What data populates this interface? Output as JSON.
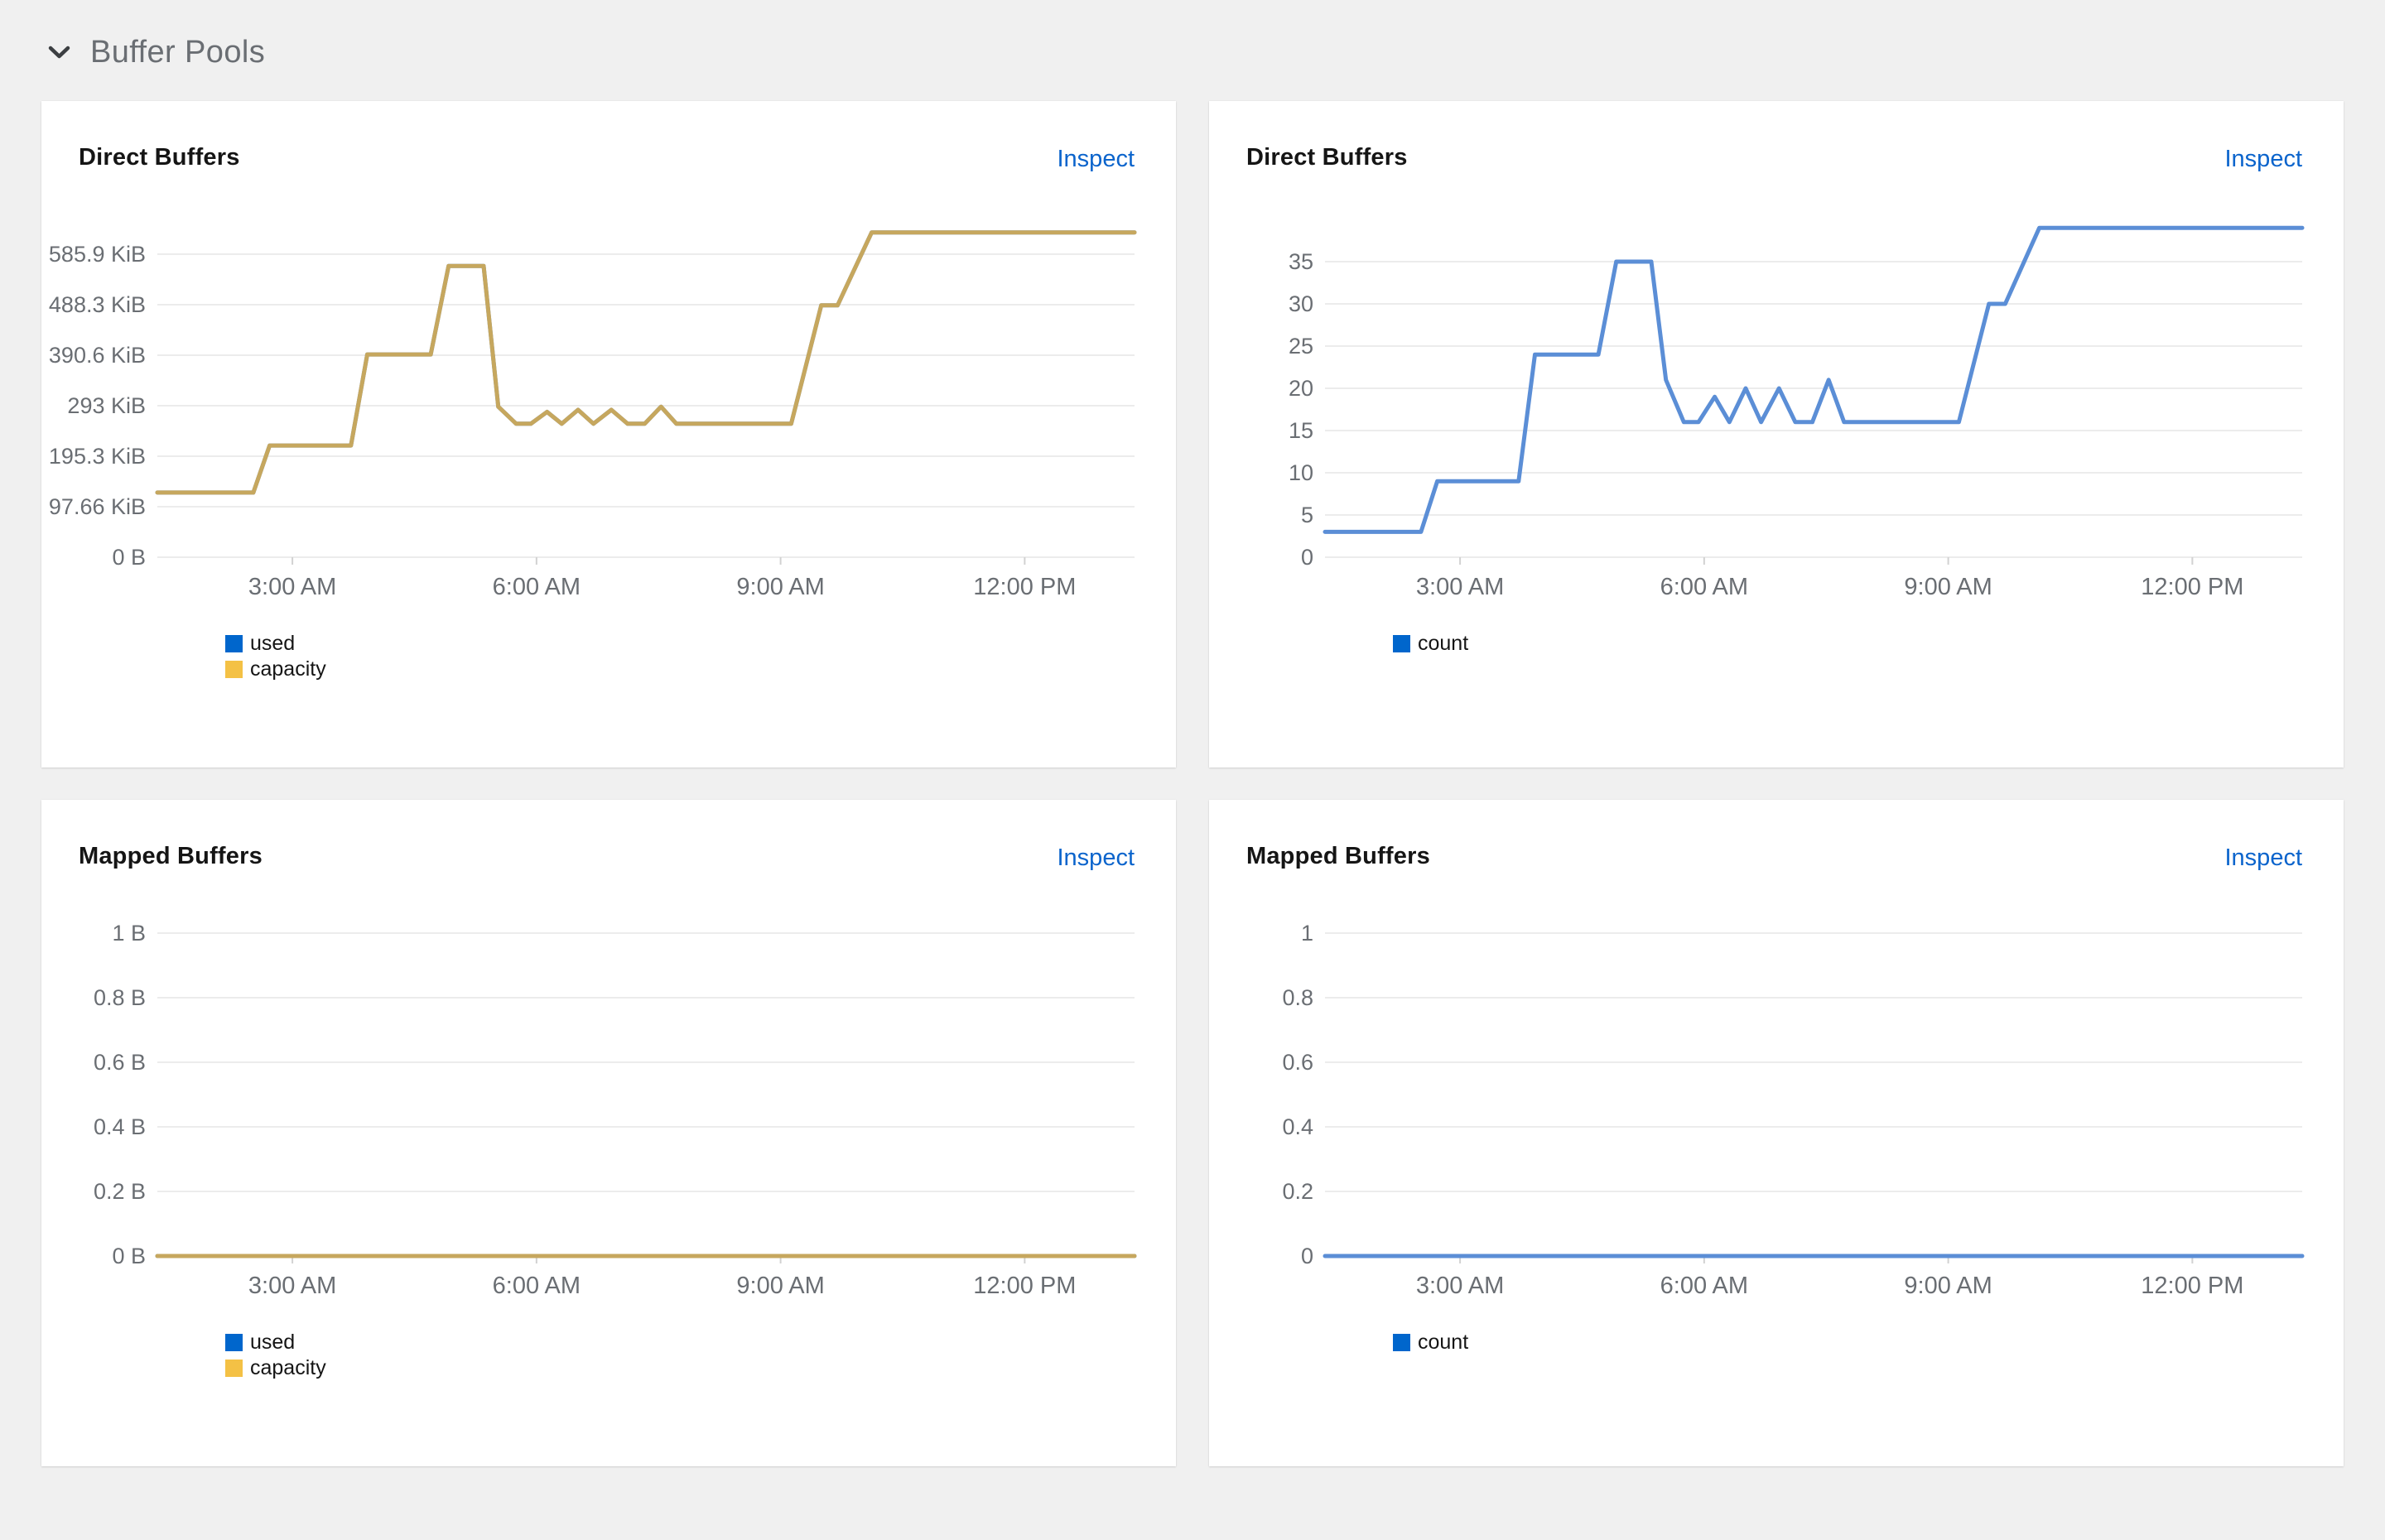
{
  "section": {
    "title": "Buffer Pools"
  },
  "colors": {
    "page_bg": "#f0f0f0",
    "card_bg": "#ffffff",
    "section_title": "#6a6e73",
    "chevron": "#3c3f42",
    "card_title": "#151515",
    "link": "#0b64cc",
    "axis_label": "#6a6e73",
    "gridline": "#ececec",
    "tick": "#d2d2d2",
    "legend_text": "#151515",
    "used_marker": "#0066cc",
    "capacity_marker": "#f4c145",
    "count_marker": "#0066cc",
    "capacity_line": "#c6a75e",
    "used_line": "#5b8ed6",
    "count_line": "#5b8ed6"
  },
  "chart_data": [
    {
      "title": "Direct Buffers",
      "inspect_label": "Inspect",
      "type": "line",
      "x_domain": [
        1.34,
        13.35
      ],
      "x_ticks": [
        {
          "value": 3,
          "label": "3:00 AM"
        },
        {
          "value": 6,
          "label": "6:00 AM"
        },
        {
          "value": 9,
          "label": "9:00 AM"
        },
        {
          "value": 12,
          "label": "12:00 PM"
        }
      ],
      "y_axis": {
        "unit": "KiB",
        "top_label_value": 585.9,
        "labels": [
          "585.9 KiB",
          "488.3 KiB",
          "390.6 KiB",
          "293 KiB",
          "195.3 KiB",
          "97.66 KiB",
          "0 B"
        ]
      },
      "series": [
        {
          "name": "used",
          "color_key": "used_line",
          "points": [
            [
              1.34,
              125
            ],
            [
              2.52,
              125
            ],
            [
              2.72,
              216
            ],
            [
              3.72,
              216
            ],
            [
              3.92,
              392
            ],
            [
              4.7,
              392
            ],
            [
              4.92,
              563
            ],
            [
              5.35,
              563
            ],
            [
              5.53,
              291
            ],
            [
              5.75,
              258
            ],
            [
              5.93,
              258
            ],
            [
              6.13,
              281
            ],
            [
              6.31,
              258
            ],
            [
              6.51,
              285
            ],
            [
              6.7,
              258
            ],
            [
              6.92,
              285
            ],
            [
              7.12,
              258
            ],
            [
              7.33,
              258
            ],
            [
              7.53,
              291
            ],
            [
              7.72,
              258
            ],
            [
              9.13,
              258
            ],
            [
              9.5,
              487
            ],
            [
              9.7,
              487
            ],
            [
              10.12,
              628
            ],
            [
              13.35,
              628
            ]
          ]
        },
        {
          "name": "capacity",
          "color_key": "capacity_line",
          "points": [
            [
              1.34,
              125
            ],
            [
              2.52,
              125
            ],
            [
              2.72,
              216
            ],
            [
              3.72,
              216
            ],
            [
              3.92,
              392
            ],
            [
              4.7,
              392
            ],
            [
              4.92,
              563
            ],
            [
              5.35,
              563
            ],
            [
              5.53,
              291
            ],
            [
              5.75,
              258
            ],
            [
              5.93,
              258
            ],
            [
              6.13,
              281
            ],
            [
              6.31,
              258
            ],
            [
              6.51,
              285
            ],
            [
              6.7,
              258
            ],
            [
              6.92,
              285
            ],
            [
              7.12,
              258
            ],
            [
              7.33,
              258
            ],
            [
              7.53,
              291
            ],
            [
              7.72,
              258
            ],
            [
              9.13,
              258
            ],
            [
              9.5,
              487
            ],
            [
              9.7,
              487
            ],
            [
              10.12,
              628
            ],
            [
              13.35,
              628
            ]
          ]
        }
      ],
      "legend": [
        {
          "label": "used",
          "marker_key": "used_marker"
        },
        {
          "label": "capacity",
          "marker_key": "capacity_marker"
        }
      ]
    },
    {
      "title": "Direct Buffers",
      "inspect_label": "Inspect",
      "type": "line",
      "x_domain": [
        1.34,
        13.35
      ],
      "x_ticks": [
        {
          "value": 3,
          "label": "3:00 AM"
        },
        {
          "value": 6,
          "label": "6:00 AM"
        },
        {
          "value": 9,
          "label": "9:00 AM"
        },
        {
          "value": 12,
          "label": "12:00 PM"
        }
      ],
      "y_axis": {
        "unit": "count",
        "top_label_value": 35,
        "labels": [
          "35",
          "30",
          "25",
          "20",
          "15",
          "10",
          "5",
          "0"
        ]
      },
      "series": [
        {
          "name": "count",
          "color_key": "count_line",
          "points": [
            [
              1.34,
              3
            ],
            [
              2.52,
              3
            ],
            [
              2.72,
              9
            ],
            [
              3.72,
              9
            ],
            [
              3.92,
              24
            ],
            [
              4.7,
              24
            ],
            [
              4.92,
              35
            ],
            [
              5.35,
              35
            ],
            [
              5.53,
              21
            ],
            [
              5.75,
              16
            ],
            [
              5.93,
              16
            ],
            [
              6.13,
              19
            ],
            [
              6.31,
              16
            ],
            [
              6.51,
              20
            ],
            [
              6.7,
              16
            ],
            [
              6.92,
              20
            ],
            [
              7.12,
              16
            ],
            [
              7.33,
              16
            ],
            [
              7.53,
              21
            ],
            [
              7.72,
              16
            ],
            [
              9.13,
              16
            ],
            [
              9.5,
              30
            ],
            [
              9.7,
              30
            ],
            [
              10.12,
              39
            ],
            [
              13.35,
              39
            ]
          ]
        }
      ],
      "legend": [
        {
          "label": "count",
          "marker_key": "count_marker"
        }
      ]
    },
    {
      "title": "Mapped Buffers",
      "inspect_label": "Inspect",
      "type": "line",
      "x_domain": [
        1.34,
        13.35
      ],
      "x_ticks": [
        {
          "value": 3,
          "label": "3:00 AM"
        },
        {
          "value": 6,
          "label": "6:00 AM"
        },
        {
          "value": 9,
          "label": "9:00 AM"
        },
        {
          "value": 12,
          "label": "12:00 PM"
        }
      ],
      "y_axis": {
        "unit": "B",
        "top_label_value": 1,
        "labels": [
          "1 B",
          "0.8 B",
          "0.6 B",
          "0.4 B",
          "0.2 B",
          "0 B"
        ]
      },
      "series": [
        {
          "name": "used",
          "color_key": "used_line",
          "points": [
            [
              1.34,
              0
            ],
            [
              13.35,
              0
            ]
          ]
        },
        {
          "name": "capacity",
          "color_key": "capacity_line",
          "points": [
            [
              1.34,
              0
            ],
            [
              13.35,
              0
            ]
          ]
        }
      ],
      "legend": [
        {
          "label": "used",
          "marker_key": "used_marker"
        },
        {
          "label": "capacity",
          "marker_key": "capacity_marker"
        }
      ]
    },
    {
      "title": "Mapped Buffers",
      "inspect_label": "Inspect",
      "type": "line",
      "x_domain": [
        1.34,
        13.35
      ],
      "x_ticks": [
        {
          "value": 3,
          "label": "3:00 AM"
        },
        {
          "value": 6,
          "label": "6:00 AM"
        },
        {
          "value": 9,
          "label": "9:00 AM"
        },
        {
          "value": 12,
          "label": "12:00 PM"
        }
      ],
      "y_axis": {
        "unit": "count",
        "top_label_value": 1,
        "labels": [
          "1",
          "0.8",
          "0.6",
          "0.4",
          "0.2",
          "0"
        ]
      },
      "series": [
        {
          "name": "count",
          "color_key": "count_line",
          "points": [
            [
              1.34,
              0
            ],
            [
              13.35,
              0
            ]
          ]
        }
      ],
      "legend": [
        {
          "label": "count",
          "marker_key": "count_marker"
        }
      ]
    }
  ]
}
